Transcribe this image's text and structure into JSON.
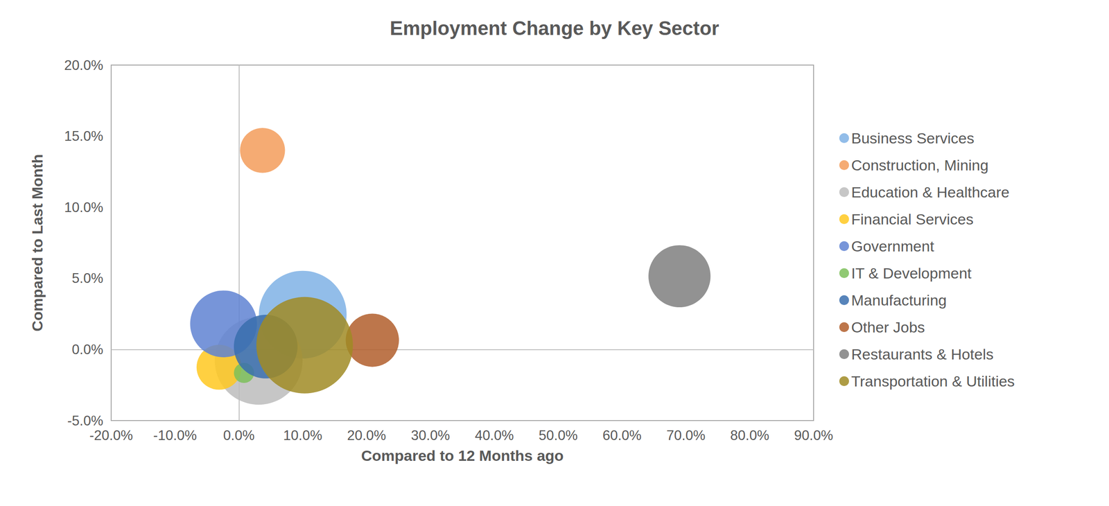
{
  "chart_data": {
    "type": "bubble",
    "title": "Employment Change by Key Sector",
    "x_label": "Compared to 12 Months ago",
    "y_label": "Compared to Last Month",
    "xlim": [
      -20,
      90
    ],
    "xticks": [
      {
        "value": -20,
        "label": "-20.0%"
      },
      {
        "value": -10,
        "label": "-10.0%"
      },
      {
        "value": 0,
        "label": "0.0%"
      },
      {
        "value": 10,
        "label": "10.0%"
      },
      {
        "value": 20,
        "label": "20.0%"
      },
      {
        "value": 30,
        "label": "30.0%"
      },
      {
        "value": 40,
        "label": "40.0%"
      },
      {
        "value": 50,
        "label": "50.0%"
      },
      {
        "value": 60,
        "label": "60.0%"
      },
      {
        "value": 70,
        "label": "70.0%"
      },
      {
        "value": 80,
        "label": "80.0%"
      },
      {
        "value": 90,
        "label": "90.0%"
      }
    ],
    "ylim": [
      -5,
      20
    ],
    "yticks": [
      {
        "value": -5,
        "label": "-5.0%"
      },
      {
        "value": 0,
        "label": "0.0%"
      },
      {
        "value": 5,
        "label": "5.0%"
      },
      {
        "value": 10,
        "label": "10.0%"
      },
      {
        "value": 15,
        "label": "15.0%"
      },
      {
        "value": 20,
        "label": "20.0%"
      }
    ],
    "grid": false,
    "legend": "right",
    "series": [
      {
        "name": "Business Services",
        "color": "#7fb2e5",
        "x": [
          10.0
        ],
        "values": [
          2.45
        ],
        "sizes": [
          38
        ]
      },
      {
        "name": "Construction, Mining",
        "color": "#f39c5b",
        "x": [
          3.7
        ],
        "values": [
          14.0
        ],
        "sizes": [
          10
        ]
      },
      {
        "name": "Education & Healthcare",
        "color": "#bcbcbc",
        "x": [
          3.1
        ],
        "values": [
          -0.8
        ],
        "sizes": [
          38
        ]
      },
      {
        "name": "Financial Services",
        "color": "#ffc820",
        "x": [
          -3.1
        ],
        "values": [
          -1.25
        ],
        "sizes": [
          10
        ]
      },
      {
        "name": "Government",
        "color": "#5f82d2",
        "x": [
          -2.4
        ],
        "values": [
          1.8
        ],
        "sizes": [
          22
        ]
      },
      {
        "name": "IT & Development",
        "color": "#7cc05a",
        "x": [
          0.8
        ],
        "values": [
          -1.65
        ],
        "sizes": [
          2
        ]
      },
      {
        "name": "Manufacturing",
        "color": "#3a6eae",
        "x": [
          4.2
        ],
        "values": [
          0.2
        ],
        "sizes": [
          20
        ]
      },
      {
        "name": "Other Jobs",
        "color": "#b25e2c",
        "x": [
          20.9
        ],
        "values": [
          0.65
        ],
        "sizes": [
          14
        ]
      },
      {
        "name": "Restaurants & Hotels",
        "color": "#7f7f7f",
        "x": [
          69.0
        ],
        "values": [
          5.15
        ],
        "sizes": [
          19
        ]
      },
      {
        "name": "Transportation & Utilities",
        "color": "#a08b25",
        "x": [
          10.3
        ],
        "values": [
          0.3
        ],
        "sizes": [
          46
        ]
      }
    ]
  }
}
